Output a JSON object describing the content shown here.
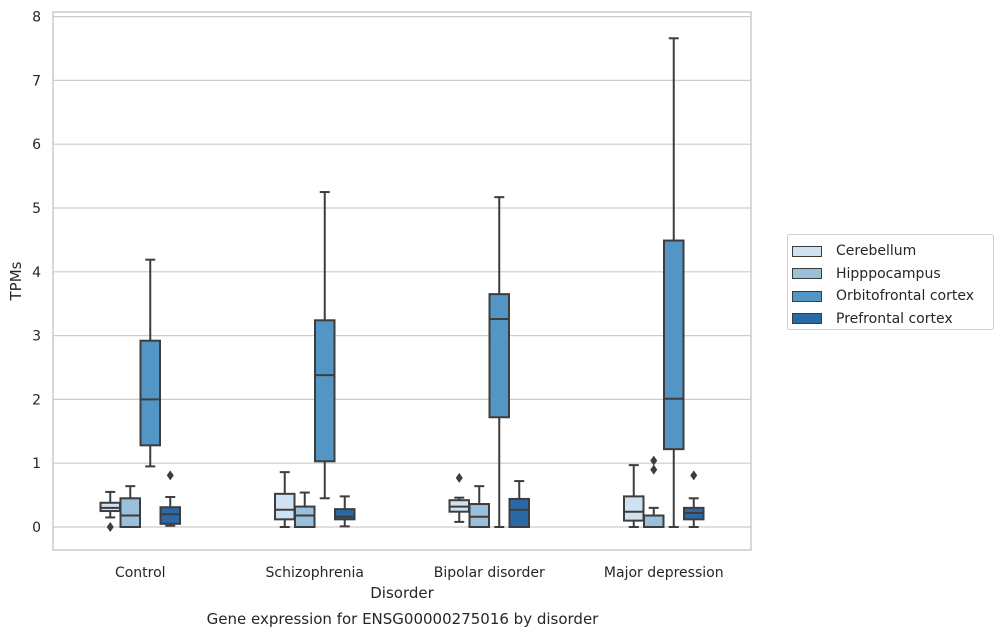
{
  "caption": "Gene expression for ENSG00000275016 by disorder",
  "chart_data": {
    "type": "box",
    "xlabel": "Disorder",
    "ylabel": "TPMs",
    "ylim": [
      -0.35,
      8.05
    ],
    "yticks": [
      0,
      1,
      2,
      3,
      4,
      5,
      6,
      7,
      8
    ],
    "grid": true,
    "legend_position": "right",
    "categories": [
      "Control",
      "Schizophrenia",
      "Bipolar disorder",
      "Major depression"
    ],
    "series": [
      {
        "name": "Cerebellum",
        "color": "#d0e1f2",
        "boxes": [
          {
            "whisker_low": 0.15,
            "q1": 0.25,
            "median": 0.3,
            "q3": 0.38,
            "whisker_high": 0.55,
            "outliers": [
              0.0
            ]
          },
          {
            "whisker_low": 0.0,
            "q1": 0.12,
            "median": 0.27,
            "q3": 0.52,
            "whisker_high": 0.86,
            "outliers": []
          },
          {
            "whisker_low": 0.08,
            "q1": 0.24,
            "median": 0.32,
            "q3": 0.42,
            "whisker_high": 0.46,
            "outliers": [
              0.77
            ]
          },
          {
            "whisker_low": 0.0,
            "q1": 0.1,
            "median": 0.24,
            "q3": 0.48,
            "whisker_high": 0.97,
            "outliers": []
          }
        ]
      },
      {
        "name": "Hipppocampus",
        "color": "#9ac0dc",
        "boxes": [
          {
            "whisker_low": 0.0,
            "q1": 0.0,
            "median": 0.18,
            "q3": 0.45,
            "whisker_high": 0.64,
            "outliers": []
          },
          {
            "whisker_low": 0.0,
            "q1": 0.0,
            "median": 0.18,
            "q3": 0.32,
            "whisker_high": 0.54,
            "outliers": []
          },
          {
            "whisker_low": 0.0,
            "q1": 0.0,
            "median": 0.16,
            "q3": 0.36,
            "whisker_high": 0.64,
            "outliers": []
          },
          {
            "whisker_low": 0.0,
            "q1": 0.0,
            "median": 0.0,
            "q3": 0.18,
            "whisker_high": 0.3,
            "outliers": [
              0.9,
              1.04
            ]
          }
        ]
      },
      {
        "name": "Orbitofrontal cortex",
        "color": "#5395c4",
        "boxes": [
          {
            "whisker_low": 0.95,
            "q1": 1.28,
            "median": 2.0,
            "q3": 2.92,
            "whisker_high": 4.19,
            "outliers": []
          },
          {
            "whisker_low": 0.45,
            "q1": 1.03,
            "median": 2.38,
            "q3": 3.24,
            "whisker_high": 5.25,
            "outliers": []
          },
          {
            "whisker_low": 0.0,
            "q1": 1.72,
            "median": 3.26,
            "q3": 3.65,
            "whisker_high": 5.17,
            "outliers": []
          },
          {
            "whisker_low": 0.0,
            "q1": 1.22,
            "median": 2.01,
            "q3": 4.49,
            "whisker_high": 7.66,
            "outliers": []
          }
        ]
      },
      {
        "name": "Prefrontal cortex",
        "color": "#2a68a6",
        "boxes": [
          {
            "whisker_low": 0.02,
            "q1": 0.05,
            "median": 0.2,
            "q3": 0.31,
            "whisker_high": 0.47,
            "outliers": [
              0.81
            ]
          },
          {
            "whisker_low": 0.01,
            "q1": 0.12,
            "median": 0.16,
            "q3": 0.28,
            "whisker_high": 0.48,
            "outliers": []
          },
          {
            "whisker_low": 0.0,
            "q1": 0.0,
            "median": 0.27,
            "q3": 0.44,
            "whisker_high": 0.72,
            "outliers": []
          },
          {
            "whisker_low": 0.0,
            "q1": 0.12,
            "median": 0.22,
            "q3": 0.3,
            "whisker_high": 0.45,
            "outliers": [
              0.81
            ]
          }
        ]
      }
    ]
  }
}
